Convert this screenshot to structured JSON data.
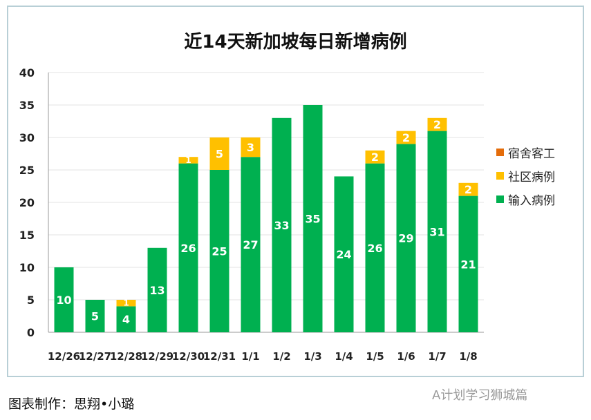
{
  "chart_data": {
    "type": "bar",
    "stacked": true,
    "title": "近14天新加坡每日新增病例",
    "categories": [
      "12/26",
      "12/27",
      "12/28",
      "12/29",
      "12/30",
      "12/31",
      "1/1",
      "1/2",
      "1/3",
      "1/4",
      "1/5",
      "1/6",
      "1/7",
      "1/8"
    ],
    "series": [
      {
        "name": "输入病例",
        "color": "#00b050",
        "values": [
          10,
          5,
          4,
          13,
          26,
          25,
          27,
          33,
          35,
          24,
          26,
          29,
          31,
          21
        ]
      },
      {
        "name": "社区病例",
        "color": "#ffc000",
        "values": [
          0,
          0,
          1,
          0,
          1,
          5,
          3,
          0,
          0,
          0,
          2,
          2,
          2,
          2
        ]
      },
      {
        "name": "宿舍客工",
        "color": "#e46c0a",
        "values": [
          0,
          0,
          0,
          0,
          0,
          0,
          0,
          0,
          0,
          0,
          0,
          0,
          0,
          0
        ]
      }
    ],
    "ylim": [
      0,
      40
    ],
    "yticks": [
      0,
      5,
      10,
      15,
      20,
      25,
      30,
      35,
      40
    ],
    "grid": true,
    "legend": "right",
    "legend_order": [
      "宿舍客工",
      "社区病例",
      "输入病例"
    ]
  },
  "footer": {
    "credit": "图表制作：思翔•小璐",
    "watermark": "A计划学习狮城篇"
  }
}
